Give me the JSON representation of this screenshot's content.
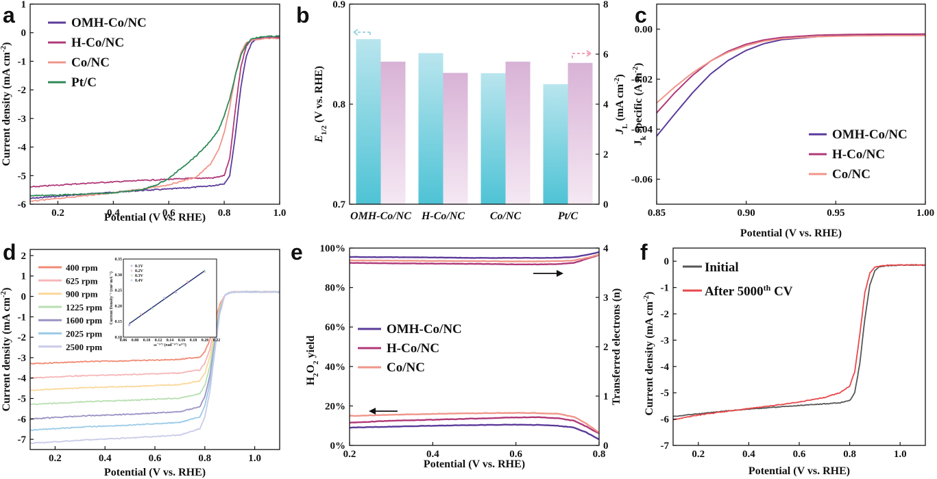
{
  "chart_data": [
    {
      "panel": "a",
      "type": "line",
      "xlabel": "Potential (V vs. RHE)",
      "ylabel": "Current density (mA cm⁻²)",
      "xlim": [
        0.1,
        1.0
      ],
      "ylim": [
        -6,
        1
      ],
      "xticks": [
        0.2,
        0.4,
        0.6,
        0.8,
        1.0
      ],
      "xtick_labels": [
        "0.2",
        "0.4",
        "0.6",
        "0.8",
        "1.0"
      ],
      "yticks": [
        1,
        0,
        -1,
        -2,
        -3,
        -4,
        -5,
        -6
      ],
      "ytick_labels": [
        "1",
        "0",
        "-1",
        "-2",
        "-3",
        "-4",
        "-5",
        "-6"
      ],
      "legend_position": "top-left",
      "series": [
        {
          "name": "OMH-Co/NC",
          "color": "#5b3a9a",
          "x": [
            0.1,
            0.2,
            0.3,
            0.4,
            0.5,
            0.6,
            0.7,
            0.76,
            0.8,
            0.82,
            0.84,
            0.86,
            0.88,
            0.9,
            0.92,
            0.95,
            1.0
          ],
          "y": [
            -5.8,
            -5.72,
            -5.65,
            -5.58,
            -5.52,
            -5.47,
            -5.4,
            -5.35,
            -5.28,
            -5.0,
            -3.6,
            -1.9,
            -0.8,
            -0.35,
            -0.2,
            -0.17,
            -0.15
          ]
        },
        {
          "name": "H-Co/NC",
          "color": "#b03878",
          "x": [
            0.1,
            0.2,
            0.3,
            0.4,
            0.5,
            0.6,
            0.7,
            0.76,
            0.8,
            0.82,
            0.84,
            0.86,
            0.88,
            0.9,
            0.95,
            1.0
          ],
          "y": [
            -5.4,
            -5.33,
            -5.27,
            -5.22,
            -5.17,
            -5.13,
            -5.09,
            -5.08,
            -5.0,
            -4.4,
            -2.7,
            -1.2,
            -0.45,
            -0.25,
            -0.19,
            -0.17
          ]
        },
        {
          "name": "Co/NC",
          "color": "#f0958a",
          "x": [
            0.1,
            0.2,
            0.3,
            0.4,
            0.5,
            0.6,
            0.7,
            0.75,
            0.78,
            0.8,
            0.82,
            0.84,
            0.86,
            0.88,
            0.9,
            0.95,
            1.0
          ],
          "y": [
            -5.9,
            -5.8,
            -5.7,
            -5.6,
            -5.48,
            -5.32,
            -5.05,
            -4.6,
            -4.1,
            -3.5,
            -2.6,
            -1.5,
            -0.7,
            -0.35,
            -0.25,
            -0.2,
            -0.2
          ]
        },
        {
          "name": "Pt/C",
          "color": "#2f8a57",
          "x": [
            0.1,
            0.2,
            0.3,
            0.4,
            0.5,
            0.55,
            0.6,
            0.65,
            0.7,
            0.75,
            0.78,
            0.8,
            0.82,
            0.84,
            0.86,
            0.88,
            0.9,
            0.95,
            1.0
          ],
          "y": [
            -5.7,
            -5.68,
            -5.65,
            -5.6,
            -5.5,
            -5.35,
            -5.1,
            -4.7,
            -4.3,
            -3.8,
            -3.4,
            -2.9,
            -2.3,
            -1.5,
            -0.8,
            -0.4,
            -0.2,
            -0.13,
            -0.12
          ]
        }
      ]
    },
    {
      "panel": "b",
      "type": "bar",
      "categories": [
        "OMH-Co/NC",
        "H-Co/NC",
        "Co/NC",
        "Pt/C"
      ],
      "ylabel": "E1/2 (V vs. RHE)",
      "y2label": "JL (mA cm⁻²)",
      "ylim": [
        0.7,
        0.9
      ],
      "y2lim": [
        0,
        8
      ],
      "yticks": [
        0.7,
        0.8,
        0.9
      ],
      "ytick_labels": [
        "0.7",
        "0.8",
        "0.9"
      ],
      "y2ticks": [
        0,
        2,
        4,
        6,
        8
      ],
      "y2tick_labels": [
        "0",
        "2",
        "4",
        "6",
        "8"
      ],
      "series": [
        {
          "name": "E1/2",
          "axis": "left",
          "color": "#4ec3d5",
          "values": [
            0.865,
            0.851,
            0.831,
            0.82
          ]
        },
        {
          "name": "JL",
          "axis": "right",
          "color": "#e0b0d8",
          "values": [
            5.7,
            5.25,
            5.7,
            5.65
          ]
        }
      ]
    },
    {
      "panel": "c",
      "type": "line",
      "xlabel": "Potential (V vs. RHE)",
      "ylabel": "Jk specific (A m⁻²)",
      "xlim": [
        0.85,
        1.0
      ],
      "ylim": [
        -0.07,
        0.01
      ],
      "xticks": [
        0.85,
        0.9,
        0.95,
        1.0
      ],
      "xtick_labels": [
        "0.85",
        "0.90",
        "0.95",
        "1.00"
      ],
      "yticks": [
        0.0,
        -0.02,
        -0.04,
        -0.06
      ],
      "ytick_labels": [
        "0.00",
        "-0.02",
        "-0.04",
        "-0.06"
      ],
      "legend_position": "bottom-right",
      "series": [
        {
          "name": "OMH-Co/NC",
          "color": "#5b3a9a",
          "x": [
            0.85,
            0.86,
            0.87,
            0.88,
            0.89,
            0.9,
            0.91,
            0.92,
            0.94,
            0.96,
            0.98,
            1.0
          ],
          "y": [
            -0.0428,
            -0.034,
            -0.0255,
            -0.018,
            -0.0125,
            -0.0085,
            -0.0058,
            -0.0042,
            -0.003,
            -0.0024,
            -0.0022,
            -0.002
          ]
        },
        {
          "name": "H-Co/NC",
          "color": "#b03878",
          "x": [
            0.85,
            0.86,
            0.87,
            0.88,
            0.89,
            0.9,
            0.91,
            0.92,
            0.94,
            0.96,
            0.98,
            1.0
          ],
          "y": [
            -0.0335,
            -0.0255,
            -0.0185,
            -0.0128,
            -0.0088,
            -0.006,
            -0.0043,
            -0.0033,
            -0.0024,
            -0.0021,
            -0.002,
            -0.002
          ]
        },
        {
          "name": "Co/NC",
          "color": "#f0958a",
          "x": [
            0.85,
            0.86,
            0.87,
            0.88,
            0.89,
            0.9,
            0.91,
            0.92,
            0.94,
            0.96,
            0.98,
            1.0
          ],
          "y": [
            -0.0295,
            -0.0232,
            -0.0175,
            -0.0128,
            -0.0092,
            -0.0066,
            -0.0048,
            -0.0038,
            -0.003,
            -0.0027,
            -0.0026,
            -0.0026
          ]
        }
      ]
    },
    {
      "panel": "d",
      "type": "line",
      "xlabel": "Potential (V vs. RHE)",
      "ylabel": "Current density (mA cm⁻²)",
      "xlim": [
        0.1,
        1.1
      ],
      "ylim": [
        -7.5,
        2.3
      ],
      "xticks": [
        0.2,
        0.4,
        0.6,
        0.8,
        1.0
      ],
      "xtick_labels": [
        "0.2",
        "0.4",
        "0.6",
        "0.8",
        "1.0"
      ],
      "yticks": [
        2,
        1,
        0,
        -1,
        -2,
        -3,
        -4,
        -5,
        -6,
        -7
      ],
      "ytick_labels": [
        "2",
        "1",
        "0",
        "-1",
        "-2",
        "-3",
        "-4",
        "-5",
        "-6",
        "-7"
      ],
      "legend_position": "top-left",
      "series": [
        {
          "name": "400 rpm",
          "color": "#f08b75",
          "limit": -3.3
        },
        {
          "name": "625 rpm",
          "color": "#f6b6b8",
          "limit": -4.0
        },
        {
          "name": "900 rpm",
          "color": "#fad89a",
          "limit": -4.6
        },
        {
          "name": "1225 rpm",
          "color": "#b7dfb0",
          "limit": -5.3
        },
        {
          "name": "1600 rpm",
          "color": "#9a92c4",
          "limit": -6.0
        },
        {
          "name": "2025 rpm",
          "color": "#9ccbe8",
          "limit": -6.55
        },
        {
          "name": "2500 rpm",
          "color": "#c9cbe8",
          "limit": -7.2
        }
      ],
      "inset": {
        "xlabel": "ω⁻¹ᐟ² (rad⁻¹ᐟ² s¹ᐟ²)",
        "ylabel": "Current Density⁻¹ (cm² mA⁻¹)",
        "xlim": [
          0.06,
          0.22
        ],
        "ylim": [
          0.1,
          0.35
        ],
        "xtick_labels": [
          "0.06",
          "0.08",
          "0.10",
          "0.12",
          "0.14",
          "0.16",
          "0.18",
          "0.20",
          "0.22"
        ],
        "ytick_labels": [
          "0.10",
          "0.15",
          "0.20",
          "0.25",
          "0.30",
          "0.35"
        ],
        "legend": [
          "0.1V",
          "0.2V",
          "0.3V",
          "0.4V"
        ],
        "fit": {
          "x": [
            0.07,
            0.2
          ],
          "y": [
            0.143,
            0.313
          ]
        }
      }
    },
    {
      "panel": "e",
      "type": "line",
      "xlabel": "Potential (V vs. RHE)",
      "ylabel": "H2O2 yield",
      "y2label": "Transferred electrons (n)",
      "xlim": [
        0.2,
        0.8
      ],
      "ylim": [
        0,
        100
      ],
      "y2lim": [
        0,
        4
      ],
      "xticks": [
        0.2,
        0.4,
        0.6,
        0.8
      ],
      "xtick_labels": [
        "0.2",
        "0.4",
        "0.6",
        "0.8"
      ],
      "yticks": [
        0,
        20,
        40,
        60,
        80,
        100
      ],
      "ytick_labels": [
        "0%",
        "20%",
        "40%",
        "60%",
        "80%",
        "100%"
      ],
      "y2ticks": [
        0,
        1,
        2,
        3,
        4
      ],
      "y2tick_labels": [
        "0",
        "1",
        "2",
        "3",
        "4"
      ],
      "legend_position": "center-left",
      "series": [
        {
          "name": "OMH-Co/NC",
          "color": "#5b3a9a",
          "x": [
            0.2,
            0.3,
            0.4,
            0.5,
            0.6,
            0.65,
            0.7,
            0.74,
            0.77,
            0.8
          ],
          "h2o2": [
            9.0,
            9.5,
            10.0,
            10.3,
            10.5,
            10.4,
            10.0,
            9.0,
            6.5,
            3.0
          ],
          "n": [
            3.82,
            3.815,
            3.81,
            3.8,
            3.8,
            3.8,
            3.805,
            3.82,
            3.86,
            3.92
          ]
        },
        {
          "name": "H-Co/NC",
          "color": "#b03878",
          "x": [
            0.2,
            0.3,
            0.4,
            0.5,
            0.6,
            0.65,
            0.7,
            0.74,
            0.77,
            0.8
          ],
          "h2o2": [
            11.5,
            12.5,
            13.0,
            13.6,
            14.2,
            14.3,
            13.8,
            12.5,
            9.5,
            6.0
          ],
          "n": [
            3.7,
            3.69,
            3.685,
            3.68,
            3.67,
            3.67,
            3.675,
            3.7,
            3.78,
            3.86
          ]
        },
        {
          "name": "Co/NC",
          "color": "#f0958a",
          "x": [
            0.2,
            0.3,
            0.4,
            0.5,
            0.6,
            0.65,
            0.7,
            0.74,
            0.77,
            0.8
          ],
          "h2o2": [
            15.0,
            15.5,
            16.0,
            16.3,
            16.5,
            16.4,
            16.0,
            14.5,
            11.0,
            6.5
          ],
          "n": [
            3.75,
            3.745,
            3.74,
            3.735,
            3.73,
            3.73,
            3.735,
            3.75,
            3.8,
            3.87
          ]
        }
      ]
    },
    {
      "panel": "f",
      "type": "line",
      "xlabel": "Potential (V vs. RHE)",
      "ylabel": "Current density (mA cm⁻²)",
      "xlim": [
        0.1,
        1.1
      ],
      "ylim": [
        -7,
        0.5
      ],
      "xticks": [
        0.2,
        0.4,
        0.6,
        0.8,
        1.0
      ],
      "xtick_labels": [
        "0.2",
        "0.4",
        "0.6",
        "0.8",
        "1.0"
      ],
      "yticks": [
        0,
        -1,
        -2,
        -3,
        -4,
        -5,
        -6,
        -7
      ],
      "ytick_labels": [
        "0",
        "-1",
        "-2",
        "-3",
        "-4",
        "-5",
        "-6",
        "-7"
      ],
      "legend_position": "top-left",
      "legend_labels": [
        "Initial",
        "After 5000th CV"
      ],
      "series": [
        {
          "name": "Initial",
          "color": "#555555",
          "x": [
            0.1,
            0.2,
            0.3,
            0.4,
            0.5,
            0.6,
            0.7,
            0.76,
            0.8,
            0.82,
            0.84,
            0.86,
            0.88,
            0.9,
            0.92,
            0.95,
            1.0,
            1.1
          ],
          "y": [
            -5.9,
            -5.8,
            -5.7,
            -5.62,
            -5.55,
            -5.48,
            -5.42,
            -5.38,
            -5.3,
            -5.0,
            -3.9,
            -2.2,
            -0.9,
            -0.35,
            -0.2,
            -0.17,
            -0.15,
            -0.15
          ]
        },
        {
          "name": "After 5000th CV",
          "color": "#e8474a",
          "x": [
            0.1,
            0.2,
            0.3,
            0.4,
            0.5,
            0.6,
            0.7,
            0.76,
            0.8,
            0.82,
            0.84,
            0.86,
            0.88,
            0.9,
            0.95,
            1.0,
            1.1
          ],
          "y": [
            -6.02,
            -5.85,
            -5.72,
            -5.6,
            -5.48,
            -5.35,
            -5.18,
            -5.0,
            -4.75,
            -4.2,
            -2.8,
            -1.2,
            -0.45,
            -0.22,
            -0.15,
            -0.14,
            -0.14
          ]
        }
      ]
    }
  ],
  "panel_letters": [
    "a",
    "b",
    "c",
    "d",
    "e",
    "f"
  ]
}
